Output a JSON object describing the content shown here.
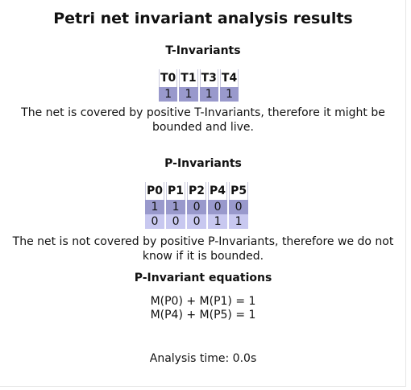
{
  "title": "Petri net invariant analysis results",
  "t_invariants": {
    "heading": "T-Invariants",
    "columns": [
      "T0",
      "T1",
      "T3",
      "T4"
    ],
    "rows": [
      [
        "1",
        "1",
        "1",
        "1"
      ]
    ],
    "message": "The net is covered by positive T-Invariants, therefore it might be bounded and live."
  },
  "p_invariants": {
    "heading": "P-Invariants",
    "columns": [
      "P0",
      "P1",
      "P2",
      "P4",
      "P5"
    ],
    "rows": [
      [
        "1",
        "1",
        "0",
        "0",
        "0"
      ],
      [
        "0",
        "0",
        "0",
        "1",
        "1"
      ]
    ],
    "message": "The net is not covered by positive P-Invariants, therefore we do not know if it is bounded."
  },
  "equations": {
    "heading": "P-Invariant equations",
    "lines": [
      "M(P0) + M(P1) = 1",
      "M(P4) + M(P5) = 1"
    ]
  },
  "analysis_time": "Analysis time: 0.0s"
}
